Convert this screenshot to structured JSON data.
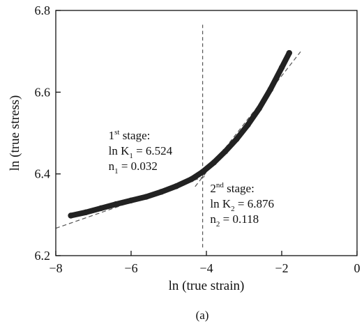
{
  "chart_data": {
    "type": "line",
    "xlabel": "ln (true strain)",
    "ylabel": "ln (true stress)",
    "caption": "(a)",
    "xlim": [
      -8,
      0
    ],
    "ylim": [
      6.2,
      6.8
    ],
    "xticks": [
      -8,
      -6,
      -4,
      -2,
      0
    ],
    "yticks": [
      6.2,
      6.4,
      6.6,
      6.8
    ],
    "xtick_labels": [
      "−8",
      "−6",
      "−4",
      "−2",
      "0"
    ],
    "ytick_labels": [
      "6.2",
      "6.4",
      "6.6",
      "6.8"
    ],
    "grid": false,
    "series": [
      {
        "x": [
          -7.6,
          -7.2,
          -6.8,
          -6.4,
          -6.0,
          -5.6,
          -5.2,
          -4.8,
          -4.4,
          -4.1,
          -3.8,
          -3.5,
          -3.2,
          -2.9,
          -2.6,
          -2.3,
          -2.0,
          -1.8
        ],
        "y": [
          6.298,
          6.306,
          6.316,
          6.326,
          6.335,
          6.344,
          6.356,
          6.37,
          6.387,
          6.405,
          6.428,
          6.455,
          6.485,
          6.52,
          6.56,
          6.607,
          6.66,
          6.696
        ],
        "style": "thick-markers",
        "color": "#222222"
      }
    ],
    "fit_lines": [
      {
        "style": "dashed",
        "color": "#555555",
        "x": [
          -8.0,
          -4.0
        ],
        "y": [
          6.267,
          6.395
        ]
      },
      {
        "style": "dashed",
        "color": "#555555",
        "x": [
          -4.3,
          -1.5
        ],
        "y": [
          6.369,
          6.699
        ]
      }
    ],
    "vertical_line": {
      "style": "dashed",
      "color": "#555555",
      "x": -4.1,
      "y": [
        6.22,
        6.765
      ]
    },
    "annotations": [
      {
        "x": -6.6,
        "y": 6.485,
        "lines": [
          [
            "1",
            "st",
            " stage:"
          ],
          [
            "ln K",
            "1",
            " = 6.524"
          ],
          [
            "n",
            "1",
            " = 0.032"
          ]
        ]
      },
      {
        "x": -3.9,
        "y": 6.355,
        "lines": [
          [
            "2",
            "nd",
            " stage:"
          ],
          [
            "ln K",
            "2",
            " = 6.876"
          ],
          [
            "n",
            "2",
            " = 0.118"
          ]
        ]
      }
    ]
  }
}
